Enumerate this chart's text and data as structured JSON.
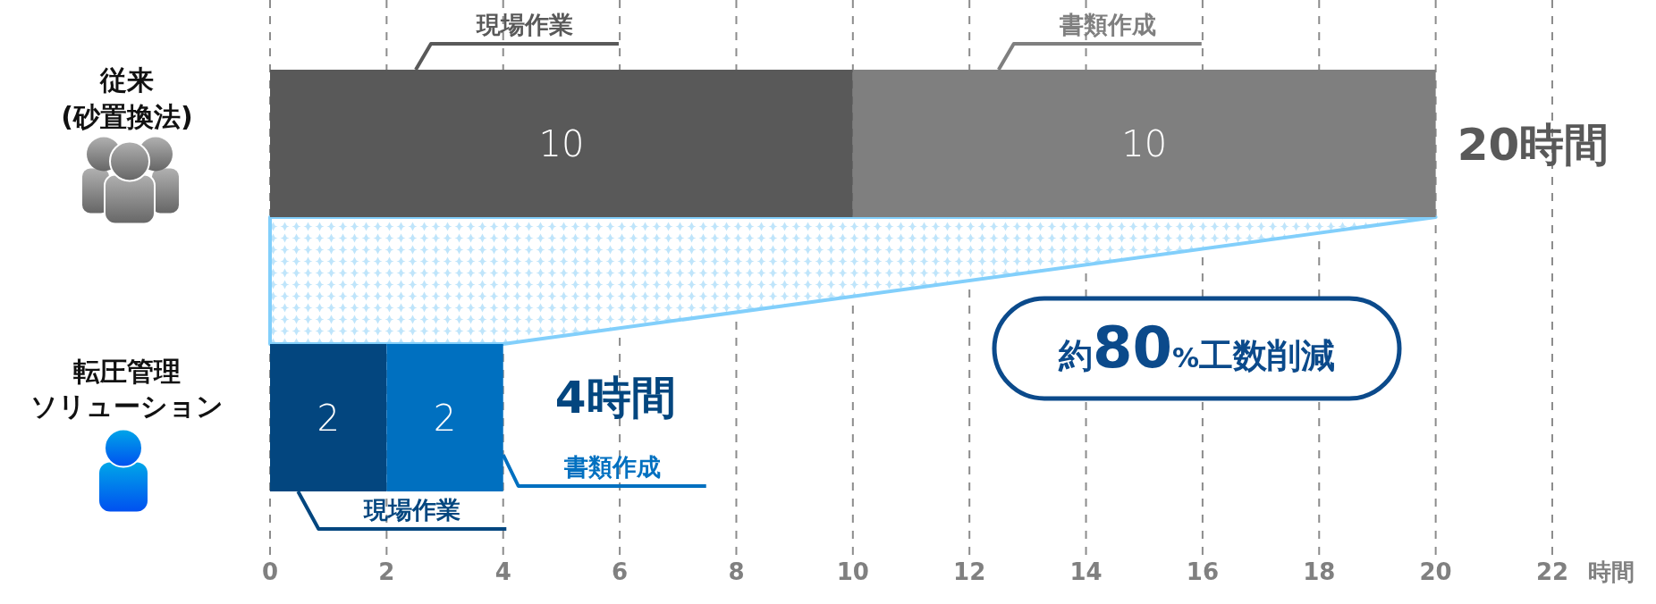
{
  "chart_data": {
    "type": "bar",
    "orientation": "horizontal",
    "stacked": true,
    "categories": [
      "従来(砂置換法)",
      "転圧管理ソリューション"
    ],
    "series": [
      {
        "name": "現場作業",
        "colors": [
          "#595959",
          "#03467f"
        ],
        "values": [
          10,
          2
        ]
      },
      {
        "name": "書類作成",
        "colors": [
          "#7f7f7f",
          "#0070c0"
        ],
        "values": [
          10,
          2
        ]
      }
    ],
    "xlim": [
      0,
      22
    ],
    "xticks": [
      0,
      2,
      4,
      6,
      8,
      10,
      12,
      14,
      16,
      18,
      20,
      22
    ],
    "xlabel": "時間",
    "grid": "x",
    "data_labels": true,
    "totals": [
      "20時間",
      "4時間"
    ],
    "annotations": [
      "約80%工数削減"
    ]
  }
}
